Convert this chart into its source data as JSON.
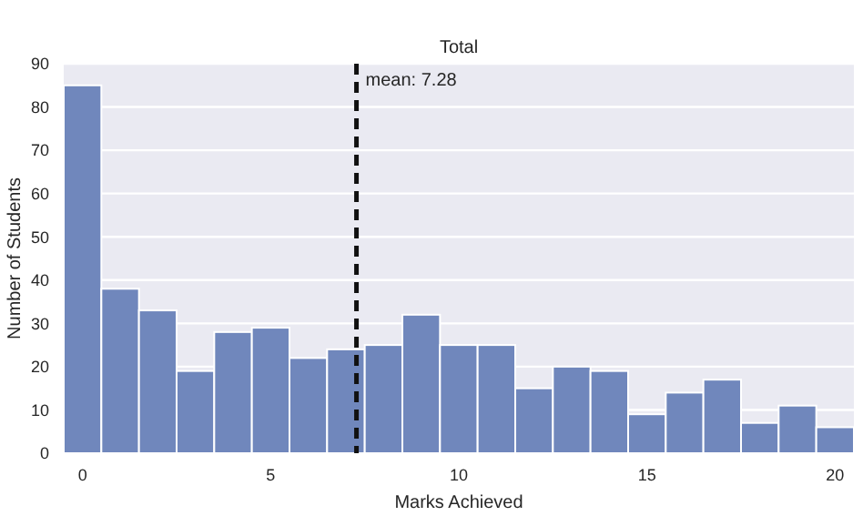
{
  "chart_data": {
    "type": "histogram",
    "title": "Total",
    "xlabel": "Marks Achieved",
    "ylabel": "Number of Students",
    "bins": [
      -0.5,
      0.5,
      1.5,
      2.5,
      3.5,
      4.5,
      5.5,
      6.5,
      7.5,
      8.5,
      9.5,
      10.5,
      11.5,
      12.5,
      13.5,
      14.5,
      15.5,
      16.5,
      17.5,
      18.5,
      19.5,
      20.5
    ],
    "values": [
      85,
      38,
      33,
      19,
      28,
      29,
      22,
      24,
      25,
      32,
      25,
      25,
      15,
      20,
      19,
      9,
      14,
      17,
      7,
      11,
      6
    ],
    "color": "#7087bc",
    "xlim": [
      -0.5,
      20.5
    ],
    "xticks": [
      0,
      5,
      10,
      15,
      20
    ],
    "ylim": [
      0,
      90
    ],
    "yticks": [
      0,
      10,
      20,
      30,
      40,
      50,
      60,
      70,
      80,
      90
    ],
    "grid": "y",
    "ref_lines": [
      {
        "axis": "x",
        "value": 7.28,
        "label": "mean: 7.28",
        "color": "#111111",
        "line_style": "dashed"
      }
    ]
  }
}
